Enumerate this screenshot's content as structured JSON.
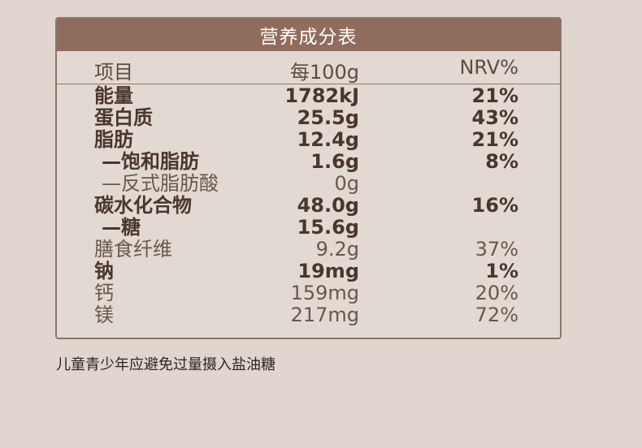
{
  "table": {
    "title": "营养成分表",
    "headers": {
      "item": "项目",
      "per": "每100g",
      "nrv": "NRV%"
    },
    "rows": [
      {
        "name": "能量",
        "value": "1782kJ",
        "nrv": "21%",
        "bold": true
      },
      {
        "name": "蛋白质",
        "value": "25.5g",
        "nrv": "43%",
        "bold": true
      },
      {
        "name": "脂肪",
        "value": "12.4g",
        "nrv": "21%",
        "bold": true
      },
      {
        "name": "—饱和脂肪",
        "value": "1.6g",
        "nrv": "8%",
        "bold": true,
        "sub": true
      },
      {
        "name": "—反式脂肪酸",
        "value": "0g",
        "nrv": "",
        "bold": false,
        "sub": true
      },
      {
        "name": "碳水化合物",
        "value": "48.0g",
        "nrv": "16%",
        "bold": true
      },
      {
        "name": "—糖",
        "value": "15.6g",
        "nrv": "",
        "bold": true,
        "sub": true
      },
      {
        "name": "膳食纤维",
        "value": "9.2g",
        "nrv": "37%",
        "bold": false
      },
      {
        "name": "钠",
        "value": "19mg",
        "nrv": "1%",
        "bold": true
      },
      {
        "name": "钙",
        "value": "159mg",
        "nrv": "20%",
        "bold": false
      },
      {
        "name": "镁",
        "value": "217mg",
        "nrv": "72%",
        "bold": false
      }
    ]
  },
  "note": "儿童青少年应避免过量摄入盐油糖",
  "colors": {
    "header_bg": "#8f6c5d",
    "page_bg": "#e0d6cf",
    "border": "#8d7668",
    "text": "#4e3b32"
  }
}
